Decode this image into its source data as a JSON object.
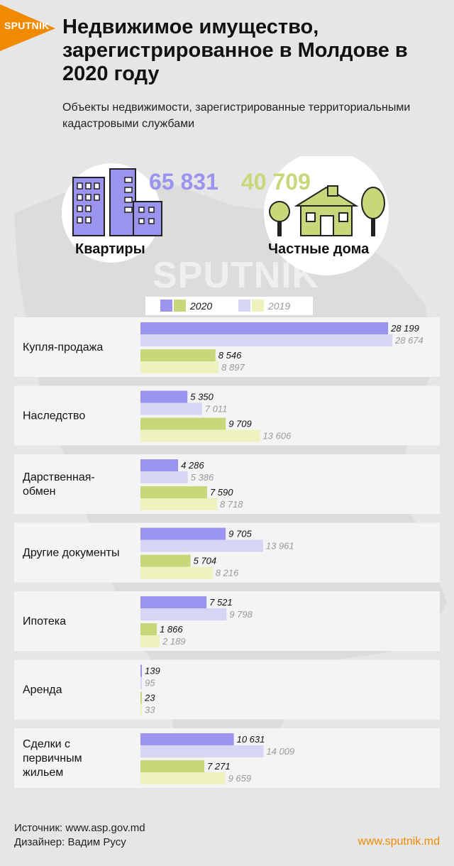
{
  "header": {
    "logo_text": "SPUTNIK",
    "title": "Недвижимое имущество, зарегистрированное в Молдове в 2020 году",
    "subtitle": "Объекты недвижимости, зарегистрированные территориальными кадастровыми службами"
  },
  "summary": {
    "apartments": {
      "value": "65 831",
      "label": "Квартиры",
      "icon": "apartment-building-icon"
    },
    "houses": {
      "value": "40 709",
      "label": "Частные дома",
      "icon": "house-with-trees-icon"
    }
  },
  "watermark": "SPUTNIK",
  "colors": {
    "apartments_2020": "#9b94ee",
    "apartments_2019": "#d6d5f5",
    "houses_2020": "#c6d87a",
    "houses_2019": "#eef3bd",
    "kpi_apartments": "#9b94ee",
    "kpi_houses": "#c6d87a",
    "accent": "#f08a00"
  },
  "chart_data": {
    "type": "bar",
    "orientation": "horizontal",
    "legend": {
      "placement": "top",
      "entries": [
        "2020",
        "2019"
      ]
    },
    "categories": [
      "Купля-продажа",
      "Наследство",
      "Дарственная-обмен",
      "Другие документы",
      "Ипотека",
      "Аренда",
      "Сделки с первичным жильем"
    ],
    "series": [
      {
        "key": "apartments_2020",
        "values": [
          28199,
          5350,
          4286,
          9705,
          7521,
          139,
          10631
        ]
      },
      {
        "key": "apartments_2019",
        "values": [
          28674,
          7011,
          5386,
          13961,
          9798,
          95,
          14009
        ]
      },
      {
        "key": "houses_2020",
        "values": [
          8546,
          9709,
          7590,
          5704,
          1866,
          23,
          7271
        ]
      },
      {
        "key": "houses_2019",
        "values": [
          8897,
          13606,
          8718,
          8216,
          2189,
          33,
          9659
        ]
      }
    ],
    "labels": [
      [
        "28 199",
        "28 674",
        "8 546",
        "8 897"
      ],
      [
        "5 350",
        "7 011",
        "9 709",
        "13 606"
      ],
      [
        "4 286",
        "5 386",
        "7 590",
        "8 718"
      ],
      [
        "9 705",
        "13 961",
        "5 704",
        "8 216"
      ],
      [
        "7 521",
        "9 798",
        "1 866",
        "2 189"
      ],
      [
        "139",
        "95",
        "23",
        "33"
      ],
      [
        "10 631",
        "14 009",
        "7 271",
        "9 659"
      ]
    ],
    "category_lines": [
      [
        "Купля-продажа"
      ],
      [
        "Наследство"
      ],
      [
        "Дарственная-",
        "обмен"
      ],
      [
        "Другие документы"
      ],
      [
        "Ипотека"
      ],
      [
        "Аренда"
      ],
      [
        "Сделки с",
        "первичным",
        "жильем"
      ]
    ]
  },
  "footer": {
    "source": "Источник: www.asp.gov.md",
    "designer": "Дизайнер: Вадим Русу",
    "site": "www.sputnik.md"
  }
}
